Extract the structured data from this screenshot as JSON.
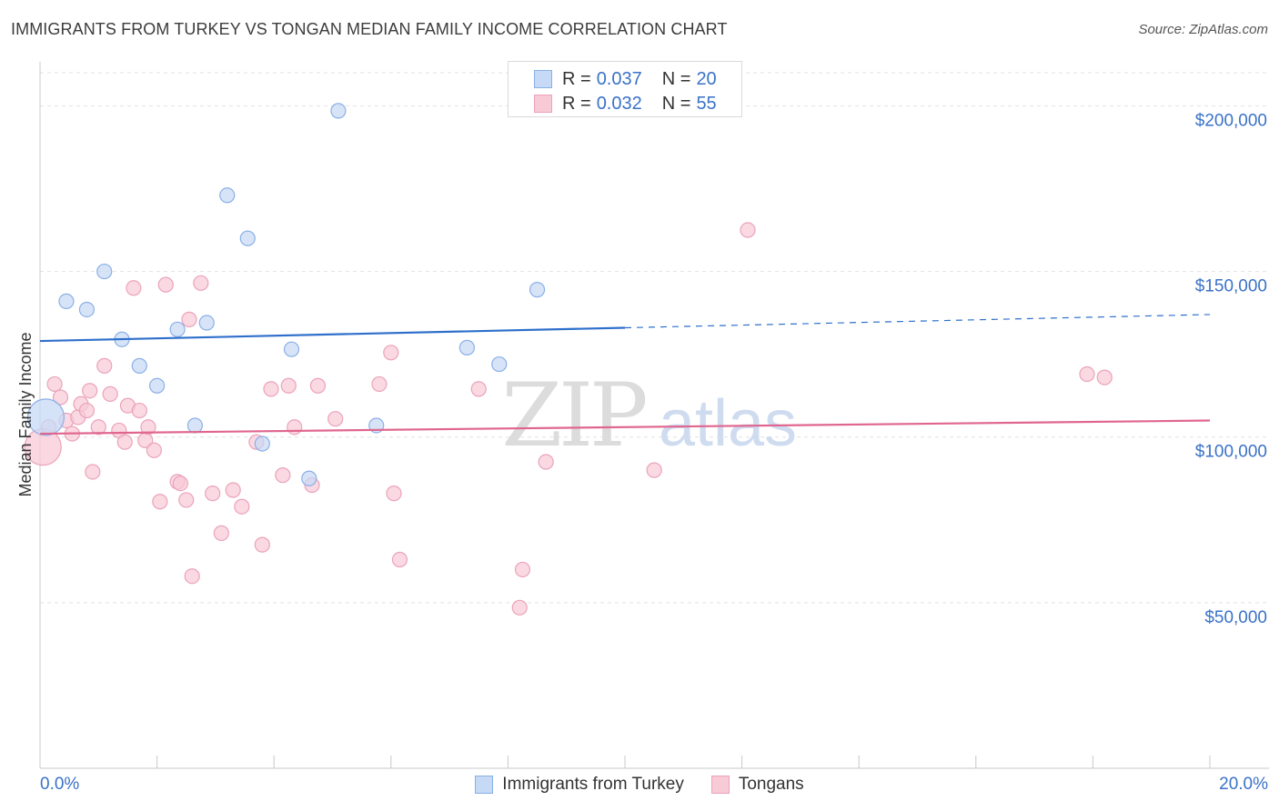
{
  "title": "IMMIGRANTS FROM TURKEY VS TONGAN MEDIAN FAMILY INCOME CORRELATION CHART",
  "source": "Source: ZipAtlas.com",
  "watermark": {
    "zip": "ZIP",
    "atlas": "atlas"
  },
  "legend": {
    "r_label": "R =",
    "n_label": "N =",
    "series1": {
      "r": "0.037",
      "n": "20"
    },
    "series2": {
      "r": "0.032",
      "n": "55"
    }
  },
  "bottom_legend": {
    "series1": "Immigrants from Turkey",
    "series2": "Tongans"
  },
  "colors": {
    "series1_fill": "#c6d9f5",
    "series1_stroke": "#8ab0e6",
    "series1_line": "#2e6fcb",
    "series2_fill": "#f8c9d7",
    "series2_stroke": "#eba3ba",
    "series2_line": "#e0668e",
    "axis_text": "#3a72c8"
  },
  "chart_data": {
    "type": "scatter",
    "title": "IMMIGRANTS FROM TURKEY VS TONGAN MEDIAN FAMILY INCOME CORRELATION CHART",
    "xlabel": "",
    "ylabel": "Median Family Income",
    "x_min_label": "0.0%",
    "x_max_label": "20.0%",
    "xlim": [
      0,
      20
    ],
    "ylim": [
      0,
      210000
    ],
    "yticks": [
      50000,
      100000,
      150000,
      200000
    ],
    "ytick_labels": [
      "$50,000",
      "$100,000",
      "$150,000",
      "$200,000"
    ],
    "series": [
      {
        "name": "Immigrants from Turkey",
        "points": [
          [
            0.1,
            106000,
            "large"
          ],
          [
            0.45,
            141000
          ],
          [
            0.8,
            138500
          ],
          [
            1.1,
            150000
          ],
          [
            1.4,
            129500
          ],
          [
            1.7,
            121500
          ],
          [
            2.0,
            115500
          ],
          [
            2.35,
            132500
          ],
          [
            2.65,
            103500
          ],
          [
            2.85,
            134500
          ],
          [
            3.2,
            173000
          ],
          [
            3.55,
            160000
          ],
          [
            3.8,
            98000
          ],
          [
            4.3,
            126500
          ],
          [
            4.6,
            87500
          ],
          [
            5.1,
            198500
          ],
          [
            5.75,
            103500
          ],
          [
            7.3,
            127000
          ],
          [
            7.85,
            122000
          ],
          [
            8.5,
            144500
          ]
        ],
        "trend": {
          "solid": [
            [
              0,
              129000
            ],
            [
              10,
              133000
            ]
          ],
          "dashed": [
            [
              10,
              133000
            ],
            [
              20,
              137000
            ]
          ]
        }
      },
      {
        "name": "Tongans",
        "points": [
          [
            0.05,
            97000,
            "large"
          ],
          [
            0.15,
            103000
          ],
          [
            0.25,
            116000
          ],
          [
            0.35,
            112000
          ],
          [
            0.45,
            105000
          ],
          [
            0.55,
            101000
          ],
          [
            0.65,
            106000
          ],
          [
            0.7,
            110000
          ],
          [
            0.8,
            108000
          ],
          [
            0.85,
            114000
          ],
          [
            0.9,
            89500
          ],
          [
            1.0,
            103000
          ],
          [
            1.1,
            121500
          ],
          [
            1.2,
            113000
          ],
          [
            1.35,
            102000
          ],
          [
            1.45,
            98500
          ],
          [
            1.5,
            109500
          ],
          [
            1.6,
            145000
          ],
          [
            1.7,
            108000
          ],
          [
            1.8,
            99000
          ],
          [
            1.85,
            103000
          ],
          [
            1.95,
            96000
          ],
          [
            2.05,
            80500
          ],
          [
            2.15,
            146000
          ],
          [
            2.35,
            86500
          ],
          [
            2.4,
            86000
          ],
          [
            2.5,
            81000
          ],
          [
            2.55,
            135500
          ],
          [
            2.6,
            58000
          ],
          [
            2.75,
            146500
          ],
          [
            2.95,
            83000
          ],
          [
            3.1,
            71000
          ],
          [
            3.3,
            84000
          ],
          [
            3.45,
            79000
          ],
          [
            3.7,
            98500
          ],
          [
            3.8,
            67500
          ],
          [
            3.95,
            114500
          ],
          [
            4.15,
            88500
          ],
          [
            4.25,
            115500
          ],
          [
            4.35,
            103000
          ],
          [
            4.65,
            85500
          ],
          [
            4.75,
            115500
          ],
          [
            5.05,
            105500
          ],
          [
            5.8,
            116000
          ],
          [
            6.0,
            125500
          ],
          [
            6.05,
            83000
          ],
          [
            6.15,
            63000
          ],
          [
            7.5,
            114500
          ],
          [
            8.2,
            48500
          ],
          [
            8.25,
            60000
          ],
          [
            8.65,
            92500
          ],
          [
            10.5,
            90000
          ],
          [
            12.1,
            162500
          ],
          [
            17.9,
            119000
          ],
          [
            18.2,
            118000
          ]
        ],
        "trend": {
          "solid": [
            [
              0,
              101000
            ],
            [
              20,
              105000
            ]
          ]
        }
      }
    ]
  }
}
